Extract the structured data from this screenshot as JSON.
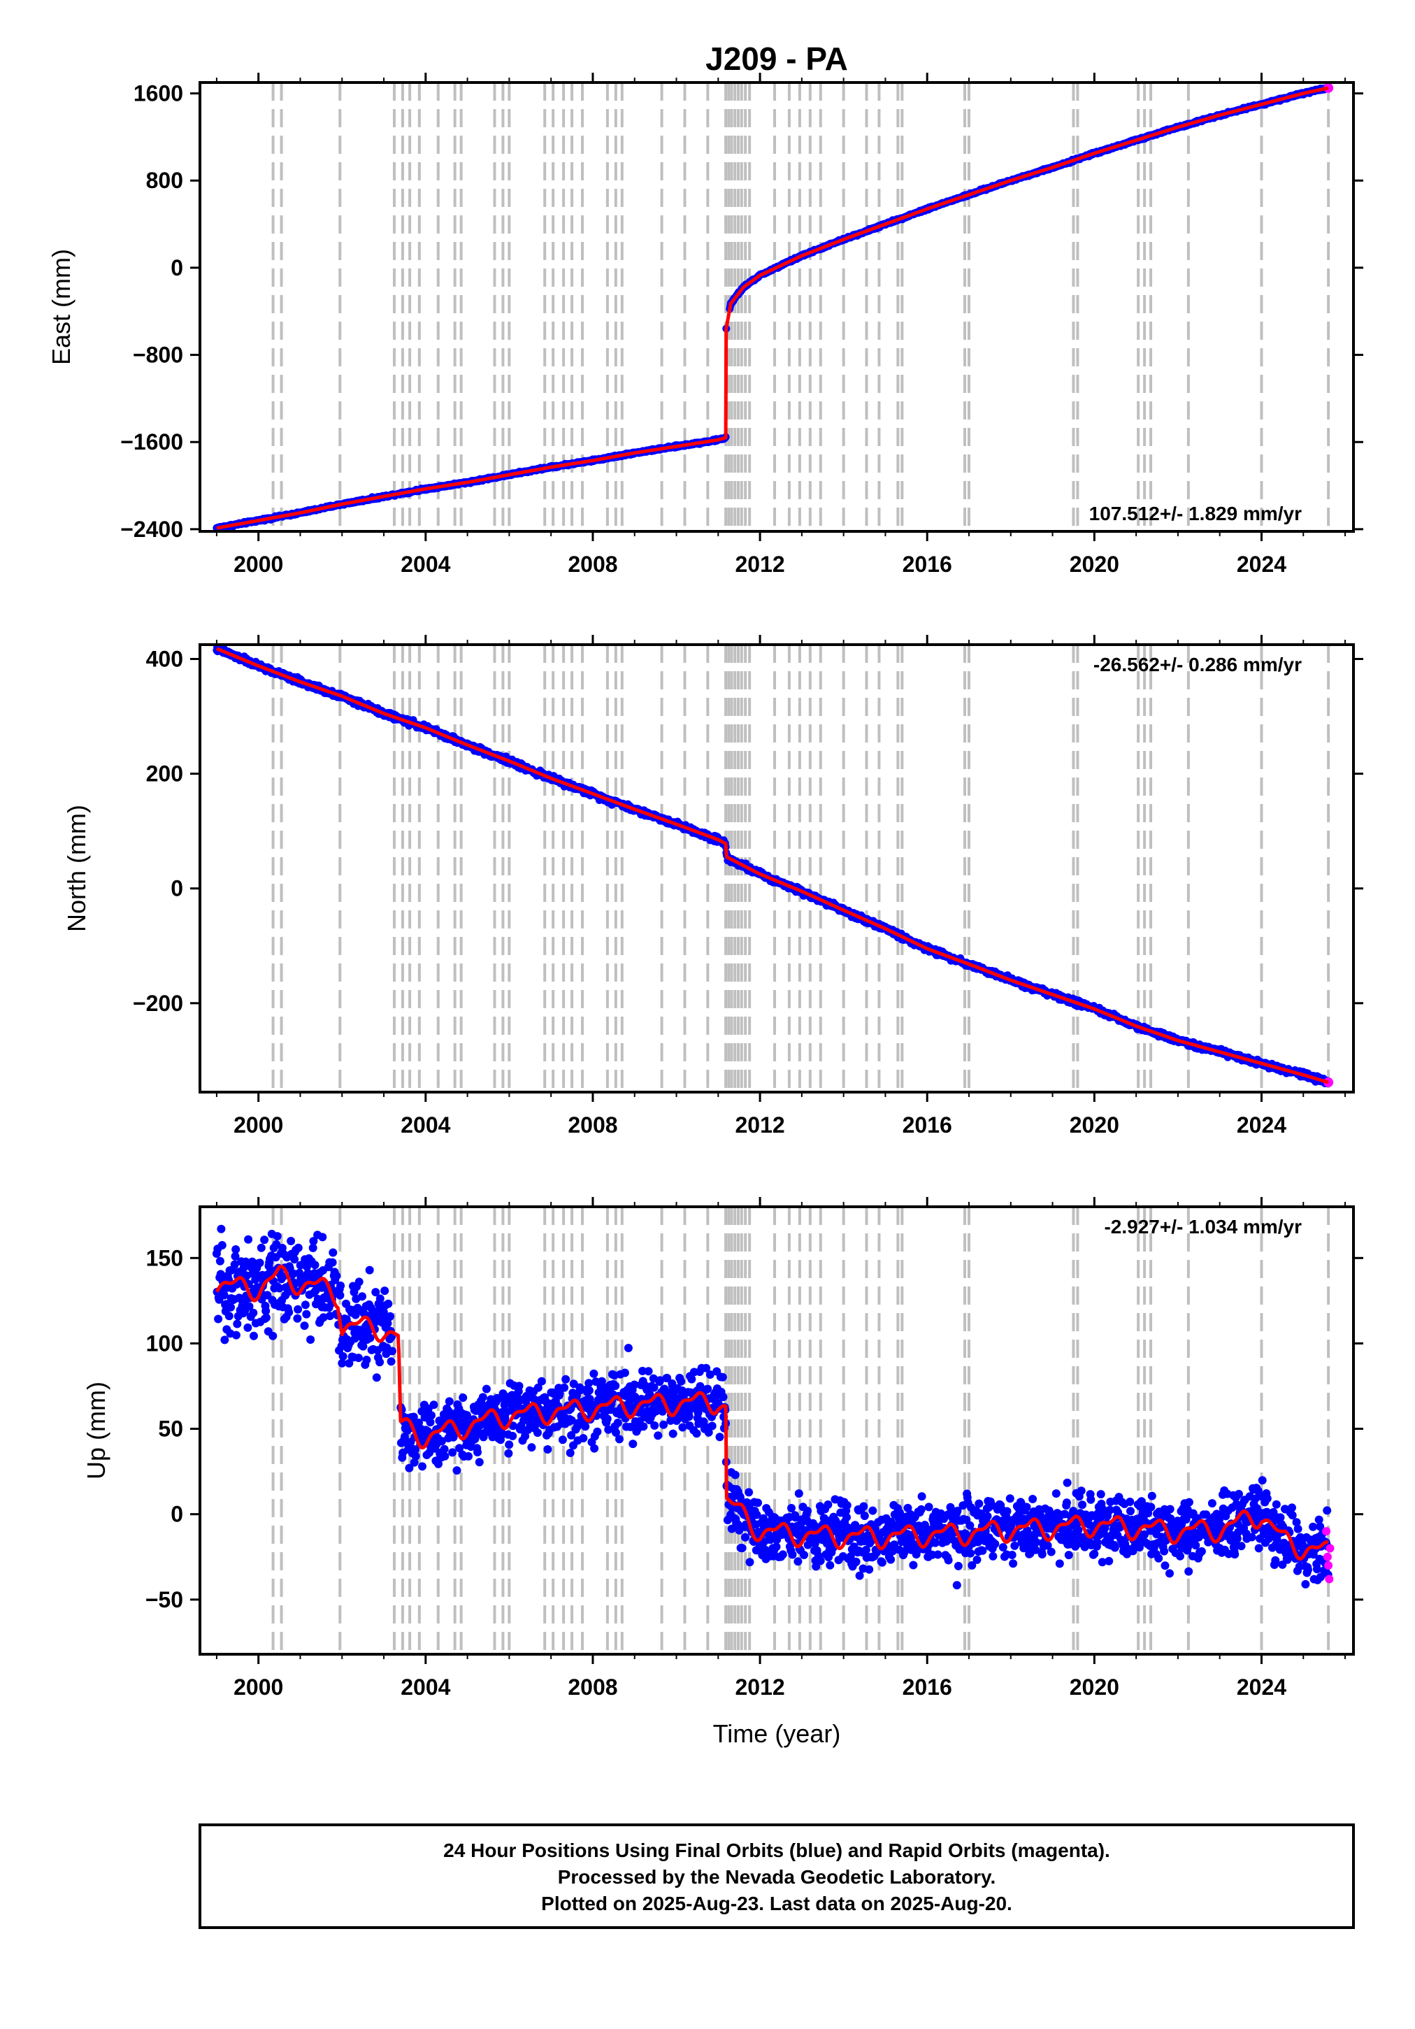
{
  "title": "J209 - PA",
  "footer": {
    "line1": "24 Hour Positions Using Final Orbits (blue) and Rapid Orbits (magenta).",
    "line2": "Processed by the Nevada Geodetic Laboratory.",
    "line3": "Plotted on 2025-Aug-23. Last data on 2025-Aug-20."
  },
  "colors": {
    "final_orbits": "#0000ff",
    "rapid_orbits": "#ff00ff",
    "model_fit": "#ff0000",
    "event_lines": "#bfbfbf"
  },
  "chart_data": [
    {
      "type": "scatter",
      "panel": "east",
      "title": "",
      "xlabel": "",
      "ylabel": "East (mm)",
      "rate_label": "107.512+/- 1.829 mm/yr",
      "xlim": [
        1998.6,
        2026.2
      ],
      "ylim": [
        -2420,
        1700
      ],
      "xticks": [
        2000,
        2004,
        2008,
        2012,
        2016,
        2020,
        2024
      ],
      "yticks": [
        1600,
        800,
        0,
        -800,
        -1600,
        -2400
      ],
      "ytick_labels": [
        "1600",
        "800",
        "0",
        "−800",
        "−1600",
        "−2400"
      ],
      "series": [
        {
          "values": [
            [
              1999.0,
              -2390
            ],
            [
              2000.0,
              -2320
            ],
            [
              2001.0,
              -2250
            ],
            [
              2002.0,
              -2170
            ],
            [
              2003.0,
              -2100
            ],
            [
              2004.0,
              -2030
            ],
            [
              2005.0,
              -1970
            ],
            [
              2006.0,
              -1900
            ],
            [
              2007.0,
              -1830
            ],
            [
              2008.0,
              -1770
            ],
            [
              2009.0,
              -1700
            ],
            [
              2010.0,
              -1640
            ],
            [
              2011.0,
              -1580
            ],
            [
              2011.18,
              -1560
            ],
            [
              2011.19,
              -560
            ],
            [
              2011.3,
              -330
            ],
            [
              2011.6,
              -180
            ],
            [
              2012.0,
              -70
            ],
            [
              2013.0,
              110
            ],
            [
              2014.0,
              260
            ],
            [
              2015.0,
              400
            ],
            [
              2016.0,
              540
            ],
            [
              2017.0,
              670
            ],
            [
              2018.0,
              800
            ],
            [
              2019.0,
              920
            ],
            [
              2020.0,
              1050
            ],
            [
              2021.0,
              1170
            ],
            [
              2022.0,
              1290
            ],
            [
              2023.0,
              1400
            ],
            [
              2024.0,
              1500
            ],
            [
              2025.0,
              1600
            ],
            [
              2025.6,
              1650
            ]
          ]
        }
      ]
    },
    {
      "type": "scatter",
      "panel": "north",
      "title": "",
      "xlabel": "",
      "ylabel": "North (mm)",
      "rate_label": "-26.562+/- 0.286 mm/yr",
      "xlim": [
        1998.6,
        2026.2
      ],
      "ylim": [
        -355,
        425
      ],
      "xticks": [
        2000,
        2004,
        2008,
        2012,
        2016,
        2020,
        2024
      ],
      "yticks": [
        400,
        200,
        0,
        -200
      ],
      "ytick_labels": [
        "400",
        "200",
        "0",
        "−200"
      ],
      "series": [
        {
          "values": [
            [
              1999.0,
              418
            ],
            [
              2000.0,
              388
            ],
            [
              2001.0,
              360
            ],
            [
              2002.0,
              335
            ],
            [
              2003.0,
              305
            ],
            [
              2004.0,
              280
            ],
            [
              2005.0,
              250
            ],
            [
              2006.0,
              222
            ],
            [
              2007.0,
              192
            ],
            [
              2008.0,
              165
            ],
            [
              2009.0,
              138
            ],
            [
              2010.0,
              112
            ],
            [
              2011.0,
              85
            ],
            [
              2011.18,
              78
            ],
            [
              2011.2,
              55
            ],
            [
              2012.0,
              25
            ],
            [
              2013.0,
              -5
            ],
            [
              2014.0,
              -38
            ],
            [
              2015.0,
              -70
            ],
            [
              2016.0,
              -105
            ],
            [
              2017.0,
              -132
            ],
            [
              2018.0,
              -160
            ],
            [
              2019.0,
              -185
            ],
            [
              2020.0,
              -210
            ],
            [
              2021.0,
              -240
            ],
            [
              2022.0,
              -265
            ],
            [
              2023.0,
              -285
            ],
            [
              2024.0,
              -305
            ],
            [
              2025.0,
              -325
            ],
            [
              2025.6,
              -338
            ]
          ]
        }
      ]
    },
    {
      "type": "scatter",
      "panel": "up",
      "title": "",
      "xlabel": "Time (year)",
      "ylabel": "Up (mm)",
      "rate_label": "-2.927+/- 1.034 mm/yr",
      "xlim": [
        1998.6,
        2026.2
      ],
      "ylim": [
        -82,
        180
      ],
      "xticks": [
        2000,
        2004,
        2008,
        2012,
        2016,
        2020,
        2024
      ],
      "yticks": [
        150,
        100,
        50,
        0,
        -50
      ],
      "ytick_labels": [
        "150",
        "100",
        "50",
        "0",
        "−50"
      ],
      "series": [
        {
          "values": [
            [
              1999.0,
              135
            ],
            [
              1999.5,
              133
            ],
            [
              2000.0,
              132
            ],
            [
              2000.5,
              140
            ],
            [
              2001.0,
              135
            ],
            [
              2001.5,
              133
            ],
            [
              2001.9,
              128
            ],
            [
              2002.0,
              110
            ],
            [
              2002.5,
              110
            ],
            [
              2003.0,
              108
            ],
            [
              2003.35,
              103
            ],
            [
              2003.4,
              52
            ],
            [
              2004.0,
              45
            ],
            [
              2005.0,
              52
            ],
            [
              2006.0,
              58
            ],
            [
              2007.0,
              60
            ],
            [
              2008.0,
              62
            ],
            [
              2009.0,
              64
            ],
            [
              2010.0,
              65
            ],
            [
              2011.0,
              66
            ],
            [
              2011.18,
              62
            ],
            [
              2011.2,
              8
            ],
            [
              2012.0,
              -10
            ],
            [
              2013.0,
              -12
            ],
            [
              2014.0,
              -13
            ],
            [
              2015.0,
              -13
            ],
            [
              2016.0,
              -12
            ],
            [
              2017.0,
              -11
            ],
            [
              2018.0,
              -9
            ],
            [
              2019.0,
              -8
            ],
            [
              2020.0,
              -6
            ],
            [
              2021.0,
              -8
            ],
            [
              2022.0,
              -10
            ],
            [
              2023.0,
              -9
            ],
            [
              2024.0,
              0
            ],
            [
              2024.5,
              -15
            ],
            [
              2025.0,
              -20
            ],
            [
              2025.6,
              -22
            ]
          ]
        }
      ],
      "rapid_values": [
        [
          2025.55,
          -10
        ],
        [
          2025.58,
          -25
        ],
        [
          2025.6,
          -30
        ],
        [
          2025.62,
          -38
        ],
        [
          2025.64,
          -20
        ]
      ]
    }
  ],
  "event_years": [
    2000.35,
    2000.55,
    2001.95,
    2003.25,
    2003.45,
    2003.62,
    2003.85,
    2004.3,
    2004.7,
    2004.85,
    2005.65,
    2005.85,
    2006.0,
    2006.85,
    2007.05,
    2007.3,
    2007.5,
    2007.75,
    2008.35,
    2008.55,
    2008.7,
    2009.65,
    2010.2,
    2010.75,
    2011.18,
    2011.25,
    2011.32,
    2011.4,
    2011.48,
    2011.56,
    2011.65,
    2011.75,
    2012.35,
    2012.7,
    2012.95,
    2013.2,
    2013.45,
    2014.0,
    2014.55,
    2014.85,
    2015.3,
    2015.4,
    2016.9,
    2017.0,
    2019.5,
    2019.6,
    2021.05,
    2021.2,
    2021.35,
    2022.25,
    2024.0,
    2025.6
  ]
}
